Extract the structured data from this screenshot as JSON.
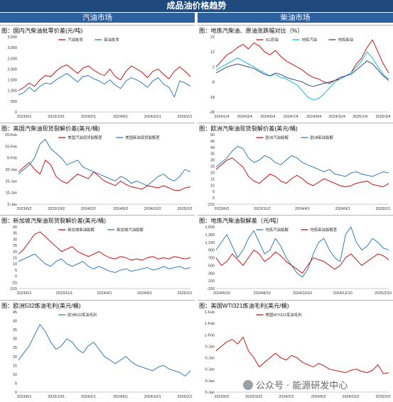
{
  "header": {
    "title": "成品油价格趋势",
    "left_section": "汽油市场",
    "right_section": "柴油市场"
  },
  "watermark": {
    "text": "公众号 · 能源研发中心",
    "icon": "wechat-icon"
  },
  "colors": {
    "red": "#c00000",
    "blue": "#1f6fb5",
    "cyan": "#00b0f0",
    "darkblue": "#1f3a6b",
    "header": "#1f497d"
  },
  "panels": [
    {
      "id": "p1",
      "title": "图：国内汽柴油批零价差(元/吨)",
      "chart_data": {
        "type": "line",
        "y_ticks": [
          "3,500",
          "3,000",
          "2,500",
          "2,000",
          "1,500",
          "1,000",
          "500",
          "0"
        ],
        "ylim": [
          0,
          3500
        ],
        "x_ticks": [
          "2023/6/1",
          "2023/10/1",
          "2024/2/1",
          "2024/6/1",
          "2024/10/1",
          "2025/2/1"
        ],
        "series": [
          {
            "name": "汽油批零",
            "color": "#c00000",
            "values": [
              1000,
              1150,
              1350,
              1200,
              1500,
              1700,
              1650,
              1900,
              2100,
              2200,
              2000,
              1800,
              2050,
              2150,
              1950,
              1800,
              1700,
              2000,
              1650,
              1500,
              1900,
              2150,
              2000,
              1850,
              1600,
              1900,
              2000,
              1750,
              1550,
              1900,
              2100,
              1900,
              1650
            ]
          },
          {
            "name": "柴油批零",
            "color": "#1f6fb5",
            "values": [
              800,
              900,
              1150,
              950,
              1200,
              1350,
              1300,
              1500,
              1650,
              1800,
              1600,
              1400,
              1650,
              1700,
              1550,
              1450,
              1300,
              1500,
              1250,
              1100,
              1450,
              1600,
              1500,
              1350,
              1150,
              1450,
              1600,
              1300,
              1150,
              700,
              1450,
              1350,
              1200
            ]
          }
        ]
      }
    },
    {
      "id": "p2",
      "title": "图：地炼汽柴油、原油涨跌幅对比（%）",
      "chart_data": {
        "type": "line",
        "y_ticks": [
          "22",
          "12",
          "2",
          "-8",
          "-18",
          "-28"
        ],
        "ylim": [
          -28,
          22
        ],
        "x_ticks": [
          "2024/1/4",
          "2024/3/4",
          "2024/5/4",
          "2024/7/4",
          "2024/9/4",
          "2024/11/4",
          "2025/1/4",
          "2025/3/4"
        ],
        "series": [
          {
            "name": "SC原油",
            "color": "#c00000",
            "values": [
              2,
              6,
              10,
              12,
              15,
              17,
              14,
              18,
              16,
              12,
              10,
              13,
              9,
              6,
              4,
              2,
              0,
              -3,
              -5,
              -6,
              -8,
              -9,
              -7,
              -6,
              -4,
              -2,
              4,
              8,
              15,
              20,
              12,
              4,
              -2
            ]
          },
          {
            "name": "地炼汽油",
            "color": "#00b0f0",
            "values": [
              0,
              2,
              4,
              6,
              8,
              6,
              4,
              2,
              0,
              -2,
              -4,
              -3,
              -5,
              -6,
              -8,
              -10,
              -14,
              -18,
              -20,
              -19,
              -16,
              -12,
              -8,
              -6,
              -4,
              -2,
              2,
              6,
              12,
              8,
              2,
              -3,
              -6
            ]
          },
          {
            "name": "地炼柴油",
            "color": "#1f3a6b",
            "values": [
              -2,
              0,
              2,
              3,
              4,
              3,
              2,
              1,
              -1,
              -3,
              -4,
              -2,
              -3,
              -5,
              -6,
              -7,
              -8,
              -10,
              -11,
              -10,
              -9,
              -8,
              -7,
              -5,
              -4,
              -3,
              0,
              3,
              6,
              4,
              0,
              -4,
              -7
            ]
          }
        ]
      }
    },
    {
      "id": "p3",
      "title": "图：美国汽柴油现货裂解价差(美元/桶)",
      "chart_data": {
        "type": "line",
        "y_ticks": [
          "29-Feb",
          "19-Feb",
          "9-Feb",
          "30-Jan",
          "20-Jan",
          "10-Jan",
          "0-Jan"
        ],
        "ylim": [
          0,
          60
        ],
        "x_ticks": [
          "2023/6/2",
          "2023/10/2",
          "2024/2/2",
          "2024/6/2",
          "2024/10/2",
          "2025/2/2"
        ],
        "series": [
          {
            "name": "美国汽油现货裂解差",
            "color": "#c00000",
            "values": [
              28,
              32,
              36,
              30,
              26,
              38,
              34,
              24,
              20,
              18,
              22,
              26,
              24,
              22,
              28,
              24,
              20,
              18,
              16,
              20,
              17,
              15,
              14,
              13,
              16,
              15,
              14,
              16,
              14,
              12,
              12,
              14,
              15
            ]
          },
          {
            "name": "美国柴油现货裂解差",
            "color": "#1f6fb5",
            "values": [
              26,
              30,
              34,
              40,
              52,
              56,
              48,
              44,
              40,
              34,
              36,
              38,
              32,
              30,
              28,
              26,
              24,
              22,
              20,
              24,
              22,
              18,
              20,
              18,
              16,
              20,
              24,
              26,
              22,
              20,
              24,
              30,
              28
            ]
          }
        ]
      }
    },
    {
      "id": "p4",
      "title": "图：欧洲汽柴油现货裂解价差(美元/桶)",
      "chart_data": {
        "type": "line",
        "y_ticks": [
          "50",
          "45",
          "40",
          "35",
          "30",
          "25",
          "20",
          "15",
          "10",
          "5",
          "0",
          "(10)"
        ],
        "ylim": [
          -10,
          50
        ],
        "x_ticks": [
          "2023/6/2",
          "2023/11/2",
          "2024/4/1",
          "2024/9/1",
          "2025/2/1"
        ],
        "series": [
          {
            "name": "欧洲汽油裂解",
            "color": "#c00000",
            "values": [
              20,
              24,
              28,
              30,
              26,
              22,
              14,
              10,
              8,
              12,
              16,
              14,
              10,
              8,
              12,
              15,
              12,
              8,
              6,
              9,
              12,
              10,
              8,
              6,
              5,
              6,
              8,
              9,
              10,
              7,
              6,
              5,
              8
            ]
          },
          {
            "name": "欧洲柴油裂解",
            "color": "#1f6fb5",
            "values": [
              22,
              26,
              30,
              36,
              40,
              38,
              30,
              26,
              28,
              32,
              30,
              26,
              24,
              28,
              32,
              30,
              26,
              24,
              22,
              20,
              18,
              20,
              16,
              15,
              14,
              17,
              18,
              16,
              15,
              14,
              16,
              18,
              17
            ]
          }
        ]
      }
    },
    {
      "id": "p5",
      "title": "图：新加坡汽柴油现货裂解价差(美元/桶)",
      "chart_data": {
        "type": "line",
        "y_ticks": [
          "40",
          "35",
          "30",
          "25",
          "20",
          "15",
          "10",
          "5",
          "0",
          "(5)",
          "(10)"
        ],
        "ylim": [
          -10,
          40
        ],
        "x_ticks": [
          "2023/6/1",
          "2023/11/1",
          "2024/4/1",
          "2024/9/1",
          "2025/2/1"
        ],
        "series": [
          {
            "name": "新加坡柴油裂解",
            "color": "#c00000",
            "values": [
              18,
              22,
              28,
              34,
              36,
              32,
              28,
              24,
              20,
              22,
              24,
              20,
              18,
              16,
              18,
              20,
              17,
              15,
              14,
              16,
              15,
              13,
              14,
              13,
              15,
              16,
              14,
              15,
              14,
              16,
              15,
              14,
              15
            ]
          },
          {
            "name": "新加坡汽油裂解",
            "color": "#1f6fb5",
            "values": [
              12,
              14,
              16,
              18,
              14,
              10,
              8,
              12,
              14,
              10,
              8,
              10,
              12,
              8,
              6,
              8,
              6,
              4,
              3,
              5,
              6,
              4,
              5,
              6,
              7,
              5,
              6,
              8,
              6,
              7,
              8,
              6,
              7
            ]
          }
        ]
      }
    },
    {
      "id": "p6",
      "title": "图：地炼汽柴油裂解差（元/吨）",
      "chart_data": {
        "type": "line",
        "y_ticks": [
          "1,500",
          "1,300",
          "1,100",
          "900",
          "700",
          "500",
          "300",
          "100",
          "-100"
        ],
        "ylim": [
          -100,
          1500
        ],
        "x_ticks": [
          "2024/6/10",
          "2024/8/10",
          "2024/10/10",
          "2024/12/10",
          "2025/2/10"
        ],
        "series": [
          {
            "name": "地炼汽油裂解",
            "color": "#1f6fb5",
            "values": [
              900,
              1100,
              1300,
              1000,
              700,
              900,
              1200,
              1400,
              1100,
              800,
              900,
              1200,
              1000,
              700,
              500,
              300,
              200,
              400,
              800,
              1100,
              1200,
              900,
              700,
              600,
              1300,
              1500,
              1100,
              900,
              1000,
              1200,
              1100,
              950,
              900
            ]
          },
          {
            "name": "地炼柴油裂解差",
            "color": "#c00000",
            "values": [
              700,
              500,
              600,
              800,
              650,
              500,
              700,
              900,
              800,
              600,
              700,
              850,
              750,
              600,
              500,
              400,
              300,
              500,
              700,
              650,
              600,
              500,
              400,
              500,
              700,
              800,
              650,
              500,
              600,
              700,
              800,
              750,
              650
            ]
          }
        ]
      }
    },
    {
      "id": "p7",
      "title": "图：欧洲532炼油毛利(美元/桶)",
      "chart_data": {
        "type": "line",
        "y_ticks": [
          "45",
          "40",
          "35",
          "30",
          "25",
          "20",
          "15",
          "10",
          "5",
          "0"
        ],
        "ylim": [
          0,
          45
        ],
        "x_ticks": [
          "2023/6/1",
          "2023/10/1",
          "2024/2/1",
          "2024/6/1",
          "2024/10/1",
          "2025/2/1"
        ],
        "series": [
          {
            "name": "欧洲532炼油毛利",
            "color": "#1f6fb5",
            "values": [
              18,
              22,
              26,
              32,
              38,
              34,
              28,
              24,
              26,
              30,
              28,
              24,
              22,
              26,
              28,
              24,
              20,
              18,
              16,
              18,
              20,
              17,
              15,
              14,
              13,
              12,
              14,
              15,
              13,
              12,
              11,
              9,
              12
            ]
          }
        ]
      }
    },
    {
      "id": "p8",
      "title": "图：美国WTI321炼油毛利(美元/桶)",
      "chart_data": {
        "type": "line",
        "y_ticks": [
          "1-Feb",
          "1-Feb",
          "1-Feb",
          "0-Jan",
          "0-Jan",
          "0-Jan",
          "0-Jan",
          "0-Jan"
        ],
        "ylim": [
          0,
          70
        ],
        "x_ticks": [
          "2023/6/2",
          "2023/10/2",
          "2024/2/2",
          "2024/6/2",
          "2024/10/2",
          "2025/2/2"
        ],
        "series": [
          {
            "name": "美国WTI321炼油毛利",
            "color": "#c00000",
            "values": [
              36,
              40,
              44,
              46,
              42,
              48,
              36,
              30,
              22,
              26,
              30,
              34,
              30,
              28,
              32,
              30,
              26,
              24,
              22,
              25,
              23,
              20,
              19,
              18,
              17,
              19,
              20,
              18,
              17,
              19,
              24,
              16,
              17
            ]
          }
        ]
      }
    }
  ]
}
